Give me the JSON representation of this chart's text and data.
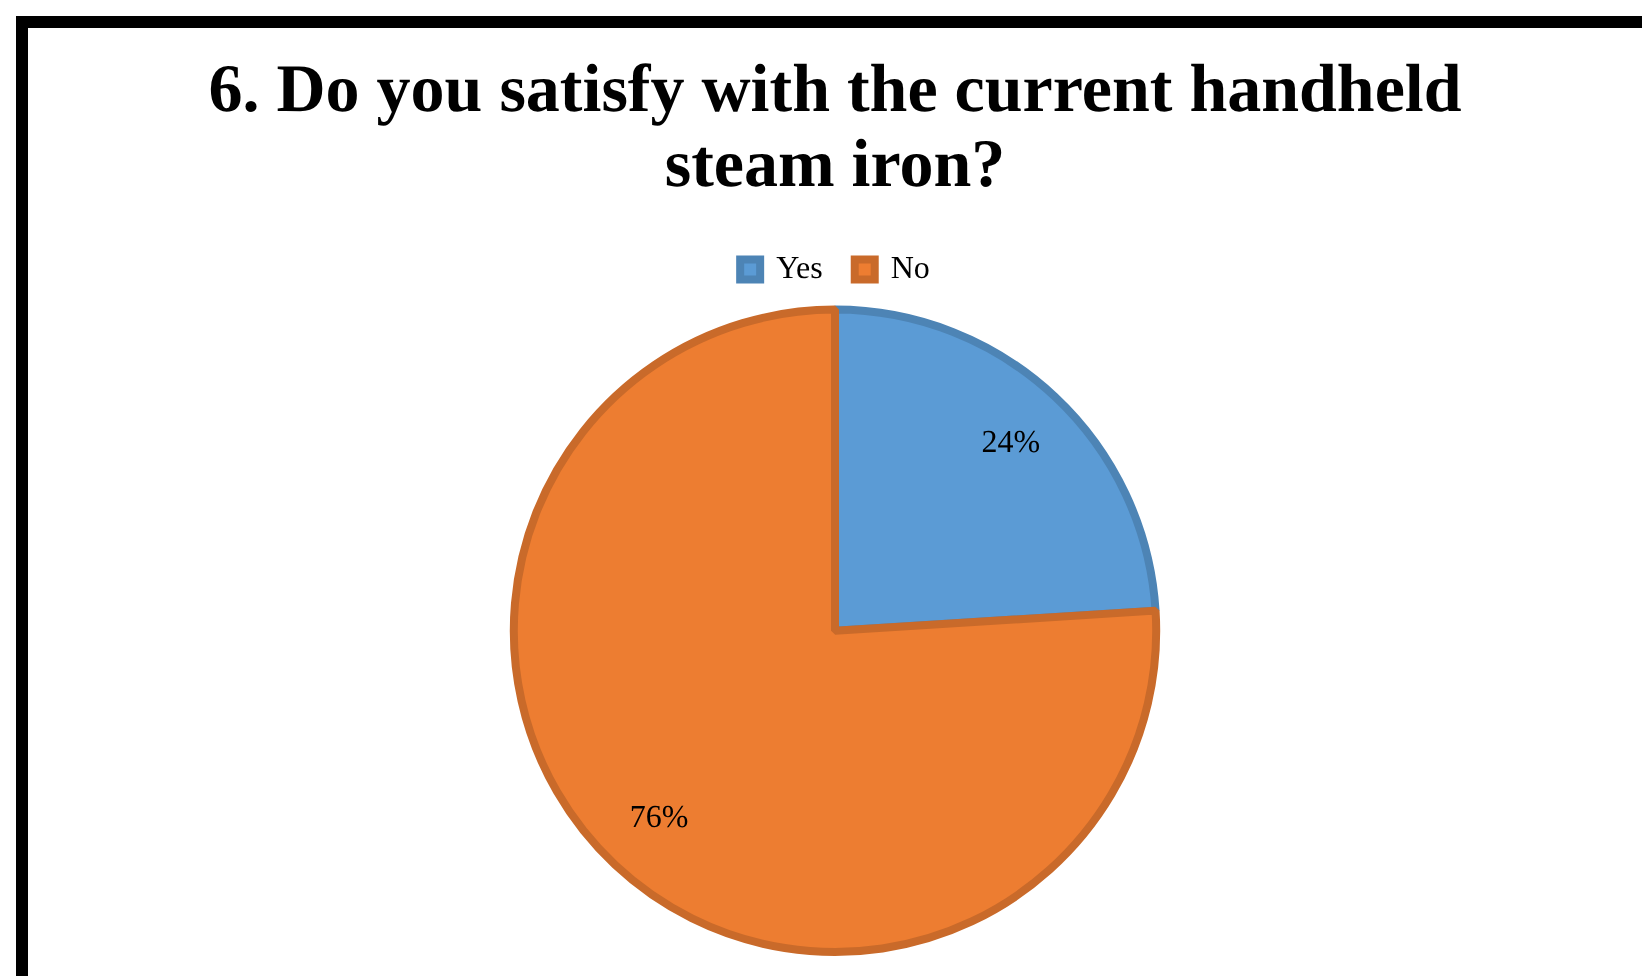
{
  "chart_data": {
    "type": "pie",
    "title": "6. Do you satisfy with the current handheld steam iron?",
    "categories": [
      "Yes",
      "No"
    ],
    "values": [
      24,
      76
    ],
    "value_labels": [
      "24%",
      "76%"
    ],
    "colors": [
      "#5b9bd5",
      "#ed7d31"
    ],
    "legend": "top"
  }
}
